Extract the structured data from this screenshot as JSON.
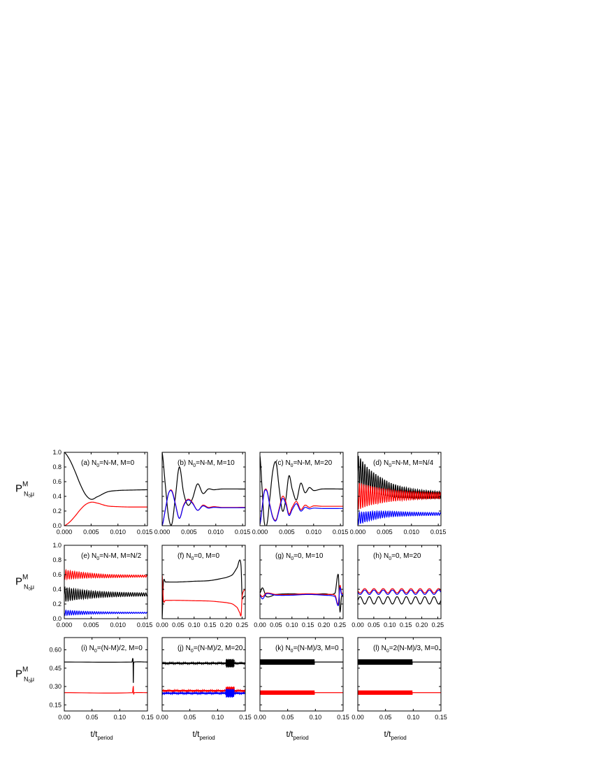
{
  "colors": {
    "black": "#000000",
    "red": "#ff0000",
    "blue": "#0000ff"
  },
  "shared_labels": {
    "ylabel_main": "P",
    "ylabel_sup": "M",
    "ylabel_sub": "N",
    "ylabel_sub_sub": "0",
    "ylabel_sub_mu": "μ",
    "xlabel_main": "t/t",
    "xlabel_sub": "period"
  },
  "chart_data": [
    {
      "id": "a",
      "type": "line",
      "label": [
        "(a) N",
        "0",
        "=N-M, M=0"
      ],
      "xlim": [
        0,
        0.0155
      ],
      "ylim": [
        0,
        1.0
      ],
      "xticks": [
        "0.000",
        "0.005",
        "0.010",
        "0.015"
      ],
      "yticks": [
        "0.0",
        "0.2",
        "0.4",
        "0.6",
        "0.8",
        "1.0"
      ],
      "series": [
        {
          "name": "black",
          "x": [
            0,
            0.001,
            0.002,
            0.003,
            0.004,
            0.005,
            0.006,
            0.008,
            0.01,
            0.012,
            0.0155
          ],
          "y": [
            1.0,
            0.9,
            0.74,
            0.56,
            0.42,
            0.36,
            0.39,
            0.46,
            0.48,
            0.485,
            0.49
          ]
        },
        {
          "name": "red",
          "x": [
            0,
            0.001,
            0.002,
            0.003,
            0.004,
            0.005,
            0.006,
            0.008,
            0.01,
            0.012,
            0.0155
          ],
          "y": [
            0.0,
            0.05,
            0.13,
            0.22,
            0.29,
            0.32,
            0.31,
            0.27,
            0.26,
            0.255,
            0.255
          ]
        }
      ]
    },
    {
      "id": "b",
      "type": "line",
      "label": [
        "(b) N",
        "0",
        "=N-M, M=10"
      ],
      "xlim": [
        0,
        0.0155
      ],
      "ylim": [
        0,
        1.0
      ],
      "xticks": [
        "0.000",
        "0.005",
        "0.010",
        "0.015"
      ],
      "yticks": [],
      "series": [
        {
          "name": "black",
          "x": [
            0,
            0.0006,
            0.0012,
            0.0018,
            0.0024,
            0.0032,
            0.004,
            0.0048,
            0.0056,
            0.0066,
            0.0076,
            0.0086,
            0.0096,
            0.011,
            0.0155
          ],
          "y": [
            1.0,
            0.55,
            0.12,
            0.02,
            0.35,
            0.8,
            0.45,
            0.28,
            0.36,
            0.57,
            0.44,
            0.5,
            0.49,
            0.5,
            0.5
          ]
        },
        {
          "name": "red",
          "x": [
            0,
            0.0006,
            0.0012,
            0.0018,
            0.0024,
            0.0032,
            0.004,
            0.0048,
            0.0056,
            0.0066,
            0.0076,
            0.0086,
            0.0096,
            0.011,
            0.0155
          ],
          "y": [
            0.0,
            0.22,
            0.44,
            0.48,
            0.32,
            0.1,
            0.28,
            0.36,
            0.32,
            0.21,
            0.28,
            0.25,
            0.26,
            0.25,
            0.25
          ]
        },
        {
          "name": "blue",
          "x": [
            0,
            0.0006,
            0.0012,
            0.0018,
            0.0024,
            0.0032,
            0.004,
            0.0048,
            0.0056,
            0.0066,
            0.0076,
            0.0086,
            0.0096,
            0.011,
            0.0155
          ],
          "y": [
            0.0,
            0.22,
            0.44,
            0.47,
            0.31,
            0.1,
            0.27,
            0.35,
            0.31,
            0.21,
            0.27,
            0.24,
            0.25,
            0.245,
            0.245
          ]
        }
      ]
    },
    {
      "id": "c",
      "type": "line",
      "label": [
        "(c) N",
        "0",
        "=N-M, M=20"
      ],
      "xlim": [
        0,
        0.0155
      ],
      "ylim": [
        0,
        1.0
      ],
      "xticks": [
        "0.000",
        "0.005",
        "0.010",
        "0.015"
      ],
      "yticks": [],
      "series": [
        {
          "name": "black",
          "x": [
            0,
            0.0004,
            0.0008,
            0.0013,
            0.0018,
            0.0024,
            0.003,
            0.0036,
            0.0042,
            0.0048,
            0.0054,
            0.006,
            0.0068,
            0.0076,
            0.0084,
            0.0092,
            0.01,
            0.0115,
            0.0155
          ],
          "y": [
            0.95,
            0.5,
            0.05,
            0.02,
            0.35,
            0.75,
            0.86,
            0.5,
            0.2,
            0.35,
            0.68,
            0.5,
            0.35,
            0.58,
            0.45,
            0.52,
            0.48,
            0.5,
            0.5
          ]
        },
        {
          "name": "red",
          "x": [
            0,
            0.0004,
            0.0008,
            0.0013,
            0.0018,
            0.0024,
            0.003,
            0.0036,
            0.0042,
            0.0048,
            0.0054,
            0.006,
            0.0068,
            0.0076,
            0.0084,
            0.0092,
            0.01,
            0.0115,
            0.0155
          ],
          "y": [
            0.02,
            0.25,
            0.47,
            0.48,
            0.3,
            0.12,
            0.08,
            0.24,
            0.4,
            0.33,
            0.16,
            0.25,
            0.33,
            0.22,
            0.28,
            0.25,
            0.27,
            0.265,
            0.265
          ]
        },
        {
          "name": "blue",
          "x": [
            0,
            0.0004,
            0.0008,
            0.0013,
            0.0018,
            0.0024,
            0.003,
            0.0036,
            0.0042,
            0.0048,
            0.0054,
            0.006,
            0.0068,
            0.0076,
            0.0084,
            0.0092,
            0.01,
            0.0115,
            0.0155
          ],
          "y": [
            0.02,
            0.24,
            0.46,
            0.47,
            0.29,
            0.11,
            0.07,
            0.22,
            0.37,
            0.3,
            0.14,
            0.22,
            0.3,
            0.2,
            0.25,
            0.23,
            0.24,
            0.235,
            0.235
          ]
        }
      ]
    },
    {
      "id": "d",
      "type": "line",
      "label": [
        "(d) N",
        "0",
        "=N-M, M=N/4"
      ],
      "xlim": [
        0,
        0.0155
      ],
      "ylim": [
        0,
        1.0
      ],
      "xticks": [
        "0.000",
        "0.005",
        "0.010",
        "0.015"
      ],
      "yticks": [],
      "series": [
        {
          "name": "black",
          "x": [
            0,
            0.002,
            0.004,
            0.006,
            0.008,
            0.01,
            0.012,
            0.0155
          ],
          "y": [
            0.75,
            0.62,
            0.55,
            0.49,
            0.46,
            0.44,
            0.43,
            0.42
          ]
        },
        {
          "name": "red",
          "x": [
            0,
            0.002,
            0.004,
            0.006,
            0.008,
            0.01,
            0.012,
            0.0155
          ],
          "y": [
            0.4,
            0.41,
            0.41,
            0.41,
            0.41,
            0.41,
            0.41,
            0.41
          ]
        },
        {
          "name": "blue",
          "x": [
            0,
            0.002,
            0.004,
            0.006,
            0.008,
            0.01,
            0.012,
            0.0155
          ],
          "y": [
            0.1,
            0.13,
            0.15,
            0.16,
            0.16,
            0.16,
            0.16,
            0.16
          ]
        }
      ]
    },
    {
      "id": "e",
      "type": "line",
      "label": [
        "(e) N",
        "0",
        "=N-M, M=N/2"
      ],
      "xlim": [
        0,
        0.0155
      ],
      "ylim": [
        0,
        1.0
      ],
      "xticks": [
        "0.000",
        "0.005",
        "0.010",
        "0.015"
      ],
      "yticks": [
        "0.0",
        "0.2",
        "0.4",
        "0.6",
        "0.8",
        "1.0"
      ],
      "series": [
        {
          "name": "black",
          "x": [
            0,
            0.004,
            0.008,
            0.012,
            0.0155
          ],
          "y": [
            0.33,
            0.33,
            0.33,
            0.33,
            0.33
          ]
        },
        {
          "name": "red",
          "x": [
            0,
            0.004,
            0.008,
            0.012,
            0.0155
          ],
          "y": [
            0.6,
            0.59,
            0.58,
            0.58,
            0.58
          ]
        },
        {
          "name": "blue",
          "x": [
            0,
            0.004,
            0.008,
            0.012,
            0.0155
          ],
          "y": [
            0.08,
            0.08,
            0.08,
            0.08,
            0.08
          ]
        }
      ]
    },
    {
      "id": "f",
      "type": "line",
      "label": [
        "(f) N",
        "0",
        "=0, M=0"
      ],
      "xlim": [
        0,
        0.26
      ],
      "ylim": [
        0,
        1.0
      ],
      "xticks": [
        "0.00",
        "0.05",
        "0.10",
        "0.15",
        "0.20",
        "0.25"
      ],
      "yticks": [],
      "series": [
        {
          "name": "black",
          "x": [
            0,
            0.004,
            0.01,
            0.05,
            0.1,
            0.15,
            0.2,
            0.22,
            0.235,
            0.243,
            0.247,
            0.25,
            0.255,
            0.26
          ],
          "y": [
            0.0,
            0.5,
            0.5,
            0.5,
            0.51,
            0.52,
            0.56,
            0.6,
            0.7,
            0.8,
            0.7,
            0.3,
            0.3,
            0.31
          ]
        },
        {
          "name": "red",
          "x": [
            0,
            0.004,
            0.01,
            0.05,
            0.1,
            0.15,
            0.2,
            0.22,
            0.235,
            0.243,
            0.247,
            0.25,
            0.255,
            0.26
          ],
          "y": [
            0.6,
            0.25,
            0.25,
            0.25,
            0.245,
            0.24,
            0.22,
            0.2,
            0.15,
            0.08,
            0.05,
            0.3,
            0.38,
            0.39
          ]
        }
      ]
    },
    {
      "id": "g",
      "type": "line",
      "label": [
        "(g) N",
        "0",
        "=0, M=10"
      ],
      "xlim": [
        0,
        0.26
      ],
      "ylim": [
        0,
        1.0
      ],
      "xticks": [
        "0.00",
        "0.05",
        "0.10",
        "0.15",
        "0.20",
        "0.25"
      ],
      "yticks": [],
      "series": [
        {
          "name": "black",
          "x": [
            0,
            0.008,
            0.02,
            0.05,
            0.1,
            0.15,
            0.2,
            0.235,
            0.245,
            0.25,
            0.255,
            0.26
          ],
          "y": [
            0.35,
            0.42,
            0.3,
            0.33,
            0.34,
            0.33,
            0.34,
            0.35,
            0.6,
            0.1,
            0.3,
            0.3
          ]
        },
        {
          "name": "red",
          "x": [
            0,
            0.008,
            0.02,
            0.05,
            0.1,
            0.15,
            0.2,
            0.235,
            0.245,
            0.25,
            0.255,
            0.26
          ],
          "y": [
            0.33,
            0.3,
            0.35,
            0.33,
            0.33,
            0.34,
            0.33,
            0.32,
            0.2,
            0.45,
            0.35,
            0.35
          ]
        },
        {
          "name": "blue",
          "x": [
            0,
            0.008,
            0.02,
            0.05,
            0.1,
            0.15,
            0.2,
            0.235,
            0.245,
            0.25,
            0.255,
            0.26
          ],
          "y": [
            0.32,
            0.27,
            0.34,
            0.32,
            0.32,
            0.33,
            0.32,
            0.3,
            0.18,
            0.42,
            0.33,
            0.33
          ]
        }
      ]
    },
    {
      "id": "h",
      "type": "line",
      "label": [
        "(h) N",
        "0",
        "=0, M=20"
      ],
      "xlim": [
        0,
        0.26
      ],
      "ylim": [
        0,
        1.0
      ],
      "xticks": [
        "0.00",
        "0.05",
        "0.10",
        "0.15",
        "0.20",
        "0.25"
      ],
      "yticks": [],
      "series": [
        {
          "name": "black",
          "x": [
            0,
            0.26
          ],
          "y": [
            0.25,
            0.25
          ]
        },
        {
          "name": "red",
          "x": [
            0,
            0.26
          ],
          "y": [
            0.38,
            0.38
          ]
        },
        {
          "name": "blue",
          "x": [
            0,
            0.26
          ],
          "y": [
            0.36,
            0.36
          ]
        }
      ]
    },
    {
      "id": "i",
      "type": "line",
      "label": [
        "(i) N",
        "0",
        "=(N-M)/2, M=0"
      ],
      "xlim": [
        0,
        0.15
      ],
      "ylim": [
        0.1,
        0.7
      ],
      "xticks": [
        "0.00",
        "0.05",
        "0.10",
        "0.15"
      ],
      "yticks": [
        "0.15",
        "0.30",
        "0.45",
        "0.60"
      ],
      "series": [
        {
          "name": "black",
          "x": [
            0,
            0.122,
            0.124,
            0.1245,
            0.125,
            0.126,
            0.15
          ],
          "y": [
            0.5,
            0.5,
            0.52,
            0.33,
            0.48,
            0.5,
            0.5
          ]
        },
        {
          "name": "red",
          "x": [
            0,
            0.123,
            0.1245,
            0.125,
            0.126,
            0.15
          ],
          "y": [
            0.25,
            0.25,
            0.3,
            0.24,
            0.25,
            0.25
          ]
        }
      ]
    },
    {
      "id": "j",
      "type": "line",
      "label": [
        "(j) N",
        "0",
        "=(N-M)/2, M=20"
      ],
      "xlim": [
        0,
        0.15
      ],
      "ylim": [
        0.1,
        0.7
      ],
      "xticks": [
        "0.00",
        "0.05",
        "0.10",
        "0.15"
      ],
      "yticks": [],
      "series": [
        {
          "name": "black",
          "x": [
            0,
            0.15
          ],
          "y": [
            0.49,
            0.49
          ]
        },
        {
          "name": "red",
          "x": [
            0,
            0.15
          ],
          "y": [
            0.265,
            0.265
          ]
        },
        {
          "name": "blue",
          "x": [
            0,
            0.15
          ],
          "y": [
            0.245,
            0.245
          ]
        }
      ]
    },
    {
      "id": "k",
      "type": "line",
      "label": [
        "(k) N",
        "0",
        "=(N-M)/3, M=0"
      ],
      "xlim": [
        0,
        0.15
      ],
      "ylim": [
        0.1,
        0.7
      ],
      "xticks": [
        "0.00",
        "0.05",
        "0.10",
        "0.15"
      ],
      "yticks": [],
      "series": [
        {
          "name": "black",
          "x": [
            0,
            0.098,
            0.15
          ],
          "y": [
            0.5,
            0.5,
            0.5
          ]
        },
        {
          "name": "red",
          "x": [
            0,
            0.098,
            0.15
          ],
          "y": [
            0.25,
            0.25,
            0.25
          ]
        }
      ]
    },
    {
      "id": "l",
      "type": "line",
      "label": [
        "(l) N",
        "0",
        "=2(N-M)/3, M=0"
      ],
      "xlim": [
        0,
        0.15
      ],
      "ylim": [
        0.1,
        0.7
      ],
      "xticks": [
        "0.00",
        "0.05",
        "0.10",
        "0.15"
      ],
      "yticks": [],
      "series": [
        {
          "name": "black",
          "x": [
            0,
            0.098,
            0.15
          ],
          "y": [
            0.5,
            0.5,
            0.5
          ]
        },
        {
          "name": "red",
          "x": [
            0,
            0.098,
            0.15
          ],
          "y": [
            0.25,
            0.25,
            0.25
          ]
        }
      ]
    }
  ]
}
